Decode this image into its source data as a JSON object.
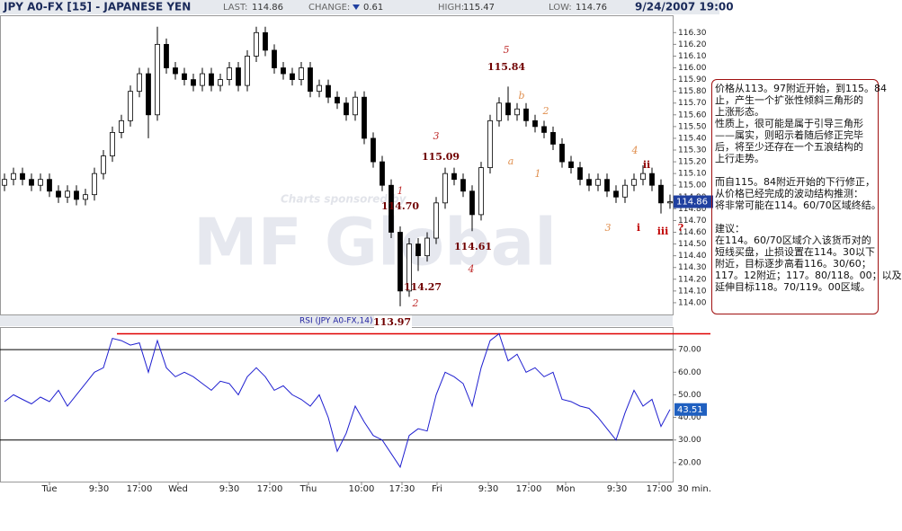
{
  "header": {
    "symbol": "JPY A0-FX [15] - JAPANESE YEN",
    "last_label": "LAST:",
    "last": "114.86",
    "change_label": "CHANGE:",
    "change": "0.61",
    "high_label": "HIGH:",
    "high": "115.47",
    "low_label": "LOW:",
    "low": "114.76",
    "datetime": "9/24/2007 19:00"
  },
  "chart_data": [
    {
      "type": "candlestick",
      "watermark": [
        "Charts sponsored by",
        "MF Global"
      ],
      "xlim": [
        -0.5,
        74.3
      ],
      "ylim": [
        113.9,
        116.44
      ],
      "yticks": [
        {
          "value": 114.0,
          "label": "114.00"
        },
        {
          "value": 114.1,
          "label": "114.10"
        },
        {
          "value": 114.2,
          "label": "114.20"
        },
        {
          "value": 114.3,
          "label": "114.30"
        },
        {
          "value": 114.4,
          "label": "114.40"
        },
        {
          "value": 114.5,
          "label": "114.50"
        },
        {
          "value": 114.6,
          "label": "114.60"
        },
        {
          "value": 114.7,
          "label": "114.70"
        },
        {
          "value": 114.8,
          "label": "114.80"
        },
        {
          "value": 114.9,
          "label": "114.90"
        },
        {
          "value": 115.0,
          "label": "115.00"
        },
        {
          "value": 115.1,
          "label": "115.10"
        },
        {
          "value": 115.2,
          "label": "115.20"
        },
        {
          "value": 115.3,
          "label": "115.30"
        },
        {
          "value": 115.4,
          "label": "115.40"
        },
        {
          "value": 115.5,
          "label": "115.50"
        },
        {
          "value": 115.6,
          "label": "115.60"
        },
        {
          "value": 115.7,
          "label": "115.70"
        },
        {
          "value": 115.8,
          "label": "115.80"
        },
        {
          "value": 115.9,
          "label": "115.90"
        },
        {
          "value": 116.0,
          "label": "116.00"
        },
        {
          "value": 116.1,
          "label": "116.10"
        },
        {
          "value": 116.2,
          "label": "116.20"
        },
        {
          "value": 116.3,
          "label": "116.30"
        }
      ],
      "open": [
        115.0,
        115.05,
        115.1,
        115.05,
        115.0,
        115.05,
        114.95,
        114.9,
        114.95,
        114.88,
        114.92,
        115.1,
        115.25,
        115.45,
        115.55,
        115.8,
        115.95,
        115.6,
        116.2,
        116.0,
        115.95,
        115.9,
        115.85,
        115.95,
        115.85,
        115.9,
        116.0,
        115.85,
        116.1,
        116.3,
        116.15,
        116.0,
        115.95,
        115.9,
        116.0,
        115.8,
        115.85,
        115.75,
        115.7,
        115.6,
        115.75,
        115.4,
        115.2,
        115.0,
        114.6,
        114.1,
        114.5,
        114.4,
        114.55,
        114.85,
        115.1,
        115.05,
        114.95,
        114.75,
        115.15,
        115.55,
        115.7,
        115.6,
        115.65,
        115.55,
        115.5,
        115.45,
        115.35,
        115.2,
        115.15,
        115.05,
        115.0,
        115.05,
        114.95,
        114.9,
        115.0,
        115.05,
        115.1,
        115.0,
        114.85
      ],
      "high": [
        115.1,
        115.15,
        115.15,
        115.1,
        115.1,
        115.1,
        115.0,
        115.0,
        115.0,
        114.97,
        115.15,
        115.3,
        115.5,
        115.6,
        115.85,
        116.0,
        116.0,
        116.35,
        116.25,
        116.05,
        116.0,
        115.95,
        116.0,
        116.0,
        115.95,
        116.05,
        116.05,
        116.15,
        116.35,
        116.35,
        116.2,
        116.05,
        116.0,
        116.05,
        116.05,
        115.9,
        115.9,
        115.8,
        115.75,
        115.8,
        115.8,
        115.45,
        115.25,
        115.05,
        114.65,
        114.55,
        114.55,
        114.6,
        114.9,
        115.15,
        115.15,
        115.1,
        115.0,
        115.2,
        115.6,
        115.75,
        115.84,
        115.7,
        115.7,
        115.6,
        115.55,
        115.5,
        115.4,
        115.25,
        115.2,
        115.1,
        115.1,
        115.1,
        115.0,
        115.05,
        115.1,
        115.17,
        115.15,
        115.05,
        114.92
      ],
      "low": [
        114.95,
        115.0,
        115.0,
        114.95,
        114.95,
        114.9,
        114.85,
        114.85,
        114.83,
        114.83,
        114.87,
        115.05,
        115.2,
        115.4,
        115.5,
        115.75,
        115.4,
        115.55,
        115.95,
        115.9,
        115.85,
        115.8,
        115.8,
        115.8,
        115.8,
        115.85,
        115.8,
        115.8,
        116.05,
        116.1,
        115.95,
        115.9,
        115.85,
        115.85,
        115.75,
        115.75,
        115.7,
        115.65,
        115.55,
        115.55,
        115.35,
        115.15,
        114.95,
        114.55,
        113.97,
        114.05,
        114.27,
        114.35,
        114.5,
        114.8,
        115.0,
        114.9,
        114.61,
        114.7,
        115.1,
        115.5,
        115.55,
        115.55,
        115.5,
        115.45,
        115.4,
        115.3,
        115.15,
        115.1,
        115.0,
        114.95,
        114.95,
        114.9,
        114.85,
        114.85,
        114.95,
        115.0,
        114.95,
        114.76,
        114.8
      ],
      "close": [
        115.05,
        115.1,
        115.05,
        115.0,
        115.05,
        114.95,
        114.9,
        114.95,
        114.88,
        114.92,
        115.1,
        115.25,
        115.45,
        115.55,
        115.8,
        115.95,
        115.6,
        116.2,
        116.0,
        115.95,
        115.9,
        115.85,
        115.95,
        115.85,
        115.9,
        116.0,
        115.85,
        116.1,
        116.3,
        116.15,
        116.0,
        115.95,
        115.9,
        116.0,
        115.8,
        115.85,
        115.75,
        115.7,
        115.6,
        115.75,
        115.4,
        115.2,
        115.0,
        114.6,
        114.1,
        114.5,
        114.4,
        114.55,
        114.85,
        115.1,
        115.05,
        114.95,
        114.75,
        115.15,
        115.55,
        115.7,
        115.6,
        115.65,
        115.55,
        115.5,
        115.45,
        115.35,
        115.2,
        115.15,
        115.05,
        115.0,
        115.05,
        114.95,
        114.9,
        115.0,
        115.05,
        115.1,
        115.0,
        114.85,
        114.86
      ],
      "annotations": [
        "1",
        "114.70",
        "2",
        "114.27",
        "3",
        "115.09",
        "4",
        "114.61",
        "5",
        "115.84",
        "113.97",
        "a",
        "b",
        "2",
        "1",
        "3",
        "4",
        "ii",
        "i",
        "iii",
        "?"
      ]
    },
    {
      "type": "line",
      "title": "RSI (JPY A0-FX,14)",
      "color": "#1f1fd0",
      "xlim": [
        -0.5,
        74.3
      ],
      "ylim": [
        11.6,
        79.6
      ],
      "yticks": [
        {
          "value": 20,
          "label": "20.00"
        },
        {
          "value": 30,
          "label": "30.00"
        },
        {
          "value": 40,
          "label": "40.00"
        },
        {
          "value": 50,
          "label": "50.00"
        },
        {
          "value": 60,
          "label": "60.00"
        },
        {
          "value": 70,
          "label": "70.00"
        }
      ],
      "levels": [
        30,
        70
      ],
      "marker_level": 77,
      "marker_color": "#e00000",
      "values": [
        47,
        50,
        48,
        46,
        49,
        47,
        52,
        45,
        50,
        55,
        60,
        62,
        75,
        74,
        72,
        73,
        60,
        74,
        62,
        58,
        60,
        58,
        55,
        52,
        56,
        55,
        50,
        58,
        62,
        58,
        52,
        54,
        50,
        48,
        45,
        50,
        40,
        25,
        33,
        45,
        38,
        32,
        30,
        24,
        18,
        32,
        35,
        34,
        50,
        60,
        58,
        55,
        45,
        62,
        74,
        77,
        65,
        68,
        60,
        62,
        58,
        60,
        48,
        47,
        45,
        44,
        40,
        35,
        30,
        42,
        52,
        45,
        48,
        36,
        43.51
      ],
      "xticks": [
        {
          "value": 5,
          "label": "Tue"
        },
        {
          "value": 10.5,
          "label": "9:30"
        },
        {
          "value": 15,
          "label": "17:00"
        },
        {
          "value": 19.3,
          "label": "Wed"
        },
        {
          "value": 25,
          "label": "9:30"
        },
        {
          "value": 29.5,
          "label": "17:00"
        },
        {
          "value": 33.8,
          "label": "Thu"
        },
        {
          "value": 39.7,
          "label": "10:00"
        },
        {
          "value": 44.2,
          "label": "17:30"
        },
        {
          "value": 48.1,
          "label": "Fri"
        },
        {
          "value": 53.8,
          "label": "9:30"
        },
        {
          "value": 58.3,
          "label": "17:00"
        },
        {
          "value": 62.4,
          "label": "Mon"
        },
        {
          "value": 68.1,
          "label": "9:30"
        },
        {
          "value": 72.8,
          "label": "17:00"
        }
      ],
      "interval": "30 min."
    }
  ],
  "note": {
    "lines": [
      "价格从113。97附近开始，到115。84",
      "止，产生一个扩张性倾斜三角形的",
      "上涨形态。",
      "性质上，很可能是属于引导三角形",
      "——属实，则昭示着随后修正完毕",
      "后，将至少还存在一个五浪结构的",
      "上行走势。",
      "",
      "而自115。84附近开始的下行修正，",
      "从价格已经完成的波动结构推测：",
      "将非常可能在114。60/70区域终结。",
      "",
      "建议：",
      "在114。60/70区域介入该货币对的",
      "短线买盘，止损设置在114。30以下",
      "附近，目标逐步高看116。30/60；",
      "117。12附近；117。80/118。00；以及",
      "延伸目标118。70/119。00区域。"
    ]
  }
}
